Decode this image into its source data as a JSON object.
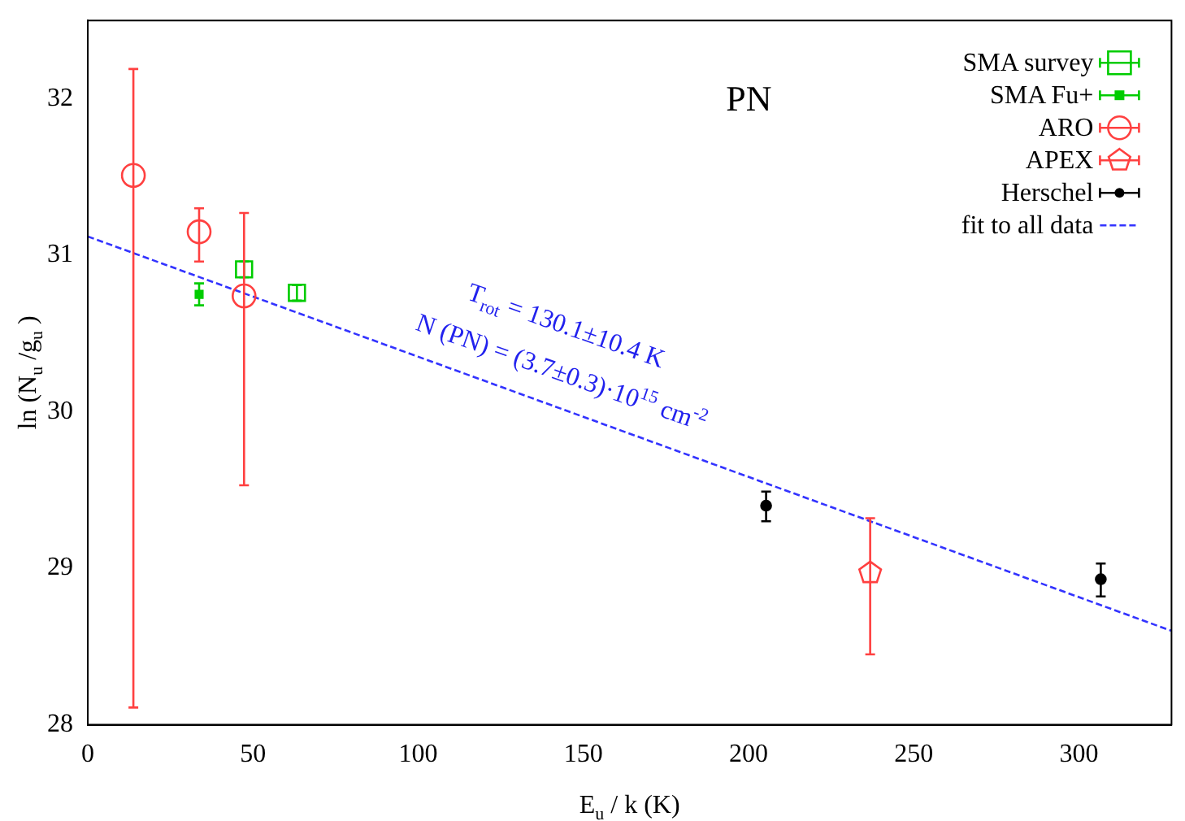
{
  "chart_data": {
    "type": "scatter",
    "title": "PN",
    "xlabel": "E$_{u}$ / k (K)",
    "ylabel": "ln (N$_{u}$ /g$_{u}$ )",
    "xlim": [
      0,
      328
    ],
    "ylim": [
      28,
      32.5
    ],
    "xticks": [
      0,
      50,
      100,
      150,
      200,
      250,
      300
    ],
    "yticks": [
      28,
      29,
      30,
      31,
      32
    ],
    "grid": false,
    "legend": "top right",
    "annotations": [
      "T$_{rot}$ = 130.1±10.4 K",
      "N (PN) = (3.7±0.3)·10$^{15}$ cm$^{-2}$"
    ],
    "series": [
      {
        "name": "SMA survey",
        "color": "#00cc00",
        "marker": "square",
        "x": [
          47.3,
          63.3
        ],
        "values": [
          30.91,
          30.76
        ],
        "errors": [
          0.05,
          0.05
        ]
      },
      {
        "name": "SMA Fu+",
        "color": "#00cc00",
        "marker": "square",
        "x": [
          33.7
        ],
        "values": [
          30.75
        ],
        "errors": [
          0.07
        ]
      },
      {
        "name": "ARO",
        "color": "#ff4040",
        "marker": "circle",
        "x": [
          13.8,
          33.7,
          47.3
        ],
        "values": [
          31.51,
          31.15,
          30.74
        ],
        "errors": [
          [
            28.11,
            32.19
          ],
          [
            30.96,
            31.3
          ],
          [
            29.53,
            31.27
          ]
        ]
      },
      {
        "name": "APEX",
        "color": "#ff4040",
        "x": [
          236.8
        ],
        "values": [
          28.97
        ],
        "errors": [
          [
            28.45,
            29.32
          ]
        ]
      },
      {
        "name": "Herschel",
        "color": "#000000",
        "marker": "circle",
        "x": [
          205.3,
          306.6
        ],
        "values": [
          29.4,
          28.93
        ],
        "errors": [
          [
            29.3,
            29.49
          ],
          [
            28.82,
            29.03
          ]
        ]
      },
      {
        "name": "fit to all data",
        "type": "line",
        "color": "#3333ff",
        "line_style": "dashed",
        "marker": "none",
        "x": [
          0,
          328
        ],
        "values": [
          31.12,
          28.6
        ]
      }
    ]
  }
}
